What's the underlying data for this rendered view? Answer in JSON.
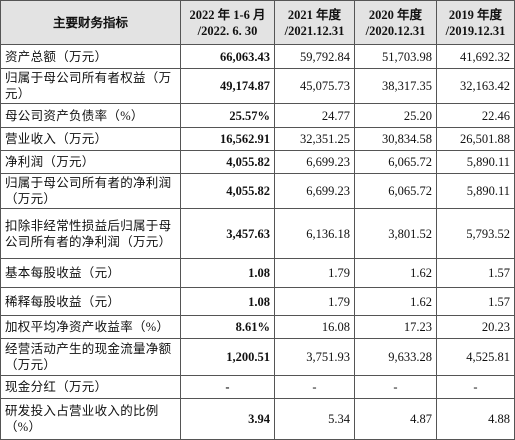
{
  "table": {
    "header": [
      [
        "主要财务指标"
      ],
      [
        "2022 年 1-6 月",
        "/2022. 6. 30"
      ],
      [
        "2021 年度",
        "/2021.12.31"
      ],
      [
        "2020 年度",
        "/2020.12.31"
      ],
      [
        "2019 年度",
        "/2019.12.31"
      ]
    ],
    "rows": [
      [
        "资产总额（万元）",
        "66,063.43",
        "59,792.84",
        "51,703.98",
        "41,692.32"
      ],
      [
        "归属于母公司所有者权益（万元）",
        "49,174.87",
        "45,075.73",
        "38,317.35",
        "32,163.42"
      ],
      [
        "母公司资产负债率（%）",
        "25.57%",
        "24.77",
        "25.20",
        "22.46"
      ],
      [
        "营业收入（万元）",
        "16,562.91",
        "32,351.25",
        "30,834.58",
        "26,501.88"
      ],
      [
        "净利润（万元）",
        "4,055.82",
        "6,699.23",
        "6,065.72",
        "5,890.11"
      ],
      [
        "归属于母公司所有者的净利润（万元）",
        "4,055.82",
        "6,699.23",
        "6,065.72",
        "5,890.11"
      ],
      [
        "扣除非经常性损益后归属于母公司所有者的净利润（万元）",
        "3,457.63",
        "6,136.18",
        "3,801.52",
        "5,793.52"
      ],
      [
        "基本每股收益（元）",
        "1.08",
        "1.79",
        "1.62",
        "1.57"
      ],
      [
        "稀释每股收益（元）",
        "1.08",
        "1.79",
        "1.62",
        "1.57"
      ],
      [
        "加权平均净资产收益率（%）",
        "8.61%",
        "16.08",
        "17.23",
        "20.23"
      ],
      [
        "经营活动产生的现金流量净额（万元）",
        "1,200.51",
        "3,751.93",
        "9,633.28",
        "4,525.81"
      ],
      [
        "现金分红（万元）",
        "-",
        "-",
        "-",
        "-"
      ],
      [
        "研发投入占营业收入的比例（%）",
        "3.94",
        "5.34",
        "4.87",
        "4.88"
      ]
    ]
  }
}
